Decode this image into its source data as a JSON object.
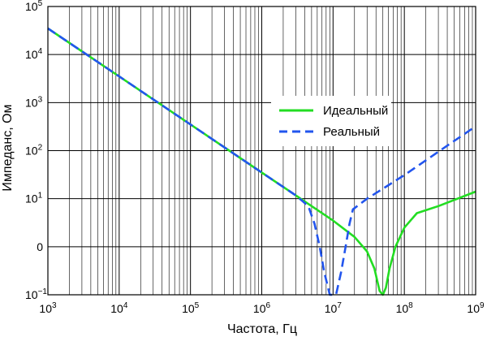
{
  "chart_data": {
    "type": "line",
    "xlabel": "Частота, Гц",
    "ylabel": "Импеданс, Ом",
    "x_scale": "log",
    "xlim": [
      1000,
      1000000000
    ],
    "ylim": [
      0.1,
      100000
    ],
    "grid": true,
    "legend_position": "right-center",
    "x_ticks": [
      {
        "value": 1000,
        "base": "10",
        "exp": "3"
      },
      {
        "value": 10000,
        "base": "10",
        "exp": "4"
      },
      {
        "value": 100000,
        "base": "10",
        "exp": "5"
      },
      {
        "value": 1000000,
        "base": "10",
        "exp": "6"
      },
      {
        "value": 10000000,
        "base": "10",
        "exp": "7"
      },
      {
        "value": 100000000,
        "base": "10",
        "exp": "8"
      },
      {
        "value": 1000000000,
        "base": "10",
        "exp": "9"
      }
    ],
    "y_ticks": [
      {
        "value": 100000,
        "base": "10",
        "exp": "5"
      },
      {
        "value": 10000,
        "base": "10",
        "exp": "4"
      },
      {
        "value": 1000,
        "base": "10",
        "exp": "3"
      },
      {
        "value": 100,
        "base": "10",
        "exp": "2"
      },
      {
        "value": 10,
        "base": "10",
        "exp": "1"
      },
      {
        "value": 1,
        "base": "0",
        "exp": ""
      },
      {
        "value": 0.1,
        "base": "10",
        "exp": "−1"
      }
    ],
    "series": [
      {
        "name": "Идеальный",
        "color": "#22dd22",
        "dash": "solid",
        "points": [
          [
            1000,
            35000
          ],
          [
            10000,
            3500
          ],
          [
            100000,
            350
          ],
          [
            1000000,
            35
          ],
          [
            3000000,
            11.7
          ],
          [
            5000000,
            7
          ],
          [
            10000000,
            3.5
          ],
          [
            20000000,
            1.6
          ],
          [
            30000000,
            0.8
          ],
          [
            38000000,
            0.35
          ],
          [
            45000000,
            0.12
          ],
          [
            50000000,
            0.1
          ],
          [
            55000000,
            0.14
          ],
          [
            62000000,
            0.35
          ],
          [
            75000000,
            1
          ],
          [
            100000000,
            2.5
          ],
          [
            150000000,
            5
          ],
          [
            300000000,
            7
          ],
          [
            1000000000,
            14
          ]
        ]
      },
      {
        "name": "Реальный",
        "color": "#2255ee",
        "dash": "dashed",
        "points": [
          [
            1000,
            35000
          ],
          [
            10000,
            3500
          ],
          [
            100000,
            350
          ],
          [
            1000000,
            35
          ],
          [
            3000000,
            11.7
          ],
          [
            4500000,
            7
          ],
          [
            5500000,
            3
          ],
          [
            6500000,
            1
          ],
          [
            7500000,
            0.3
          ],
          [
            9000000,
            0.1
          ],
          [
            11000000,
            0.1
          ],
          [
            13000000,
            0.3
          ],
          [
            15000000,
            1
          ],
          [
            17000000,
            3
          ],
          [
            19000000,
            6
          ],
          [
            30000000,
            10
          ],
          [
            100000000,
            31
          ],
          [
            300000000,
            95
          ],
          [
            1000000000,
            320
          ]
        ]
      }
    ]
  }
}
